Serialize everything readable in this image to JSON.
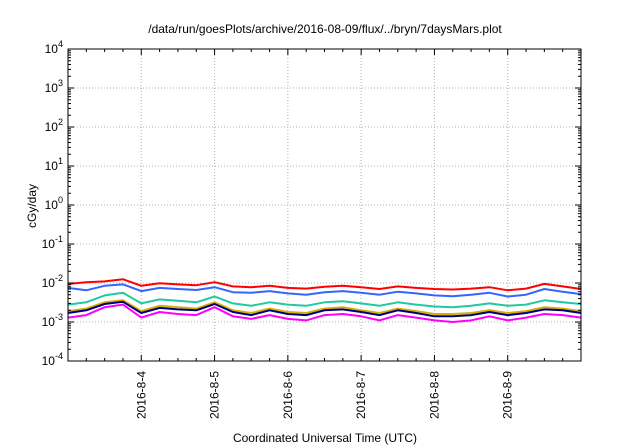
{
  "chart_data": {
    "type": "line",
    "title": "/data/run/goesPlots/archive/2016-08-09/flux/../bryn/7daysMars.plot",
    "xlabel": "Coordinated Universal Time (UTC)",
    "ylabel": "cGy/day",
    "y_scale": "log",
    "ylim": [
      0.0001,
      10000
    ],
    "xlim": [
      "2016-08-03 00:00",
      "2016-08-10 00:00"
    ],
    "grid": true,
    "x_tick_labels": [
      "2016-8-4",
      "2016-8-5",
      "2016-8-6",
      "2016-8-7",
      "2016-8-8",
      "2016-8-9"
    ],
    "y_ticks": [
      {
        "base": "10",
        "exp": "-4",
        "value": 0.0001
      },
      {
        "base": "10",
        "exp": "-3",
        "value": 0.001
      },
      {
        "base": "10",
        "exp": "-2",
        "value": 0.01
      },
      {
        "base": "10",
        "exp": "-1",
        "value": 0.1
      },
      {
        "base": "10",
        "exp": "0",
        "value": 1
      },
      {
        "base": "10",
        "exp": "1",
        "value": 10
      },
      {
        "base": "10",
        "exp": "2",
        "value": 100
      },
      {
        "base": "10",
        "exp": "3",
        "value": 1000
      },
      {
        "base": "10",
        "exp": "4",
        "value": 10000
      }
    ],
    "x": [
      "2016-08-03 00:00",
      "2016-08-03 06:00",
      "2016-08-03 12:00",
      "2016-08-03 18:00",
      "2016-08-04 00:00",
      "2016-08-04 06:00",
      "2016-08-04 12:00",
      "2016-08-04 18:00",
      "2016-08-05 00:00",
      "2016-08-05 06:00",
      "2016-08-05 12:00",
      "2016-08-05 18:00",
      "2016-08-06 00:00",
      "2016-08-06 06:00",
      "2016-08-06 12:00",
      "2016-08-06 18:00",
      "2016-08-07 00:00",
      "2016-08-07 06:00",
      "2016-08-07 12:00",
      "2016-08-07 18:00",
      "2016-08-08 00:00",
      "2016-08-08 06:00",
      "2016-08-08 12:00",
      "2016-08-08 18:00",
      "2016-08-09 00:00",
      "2016-08-09 06:00",
      "2016-08-09 12:00",
      "2016-08-09 18:00",
      "2016-08-10 00:00"
    ],
    "series": [
      {
        "color": "#ff0000",
        "values": [
          0.0095,
          0.0105,
          0.011,
          0.0125,
          0.0085,
          0.0098,
          0.0092,
          0.0088,
          0.0105,
          0.0082,
          0.0078,
          0.0085,
          0.0075,
          0.0072,
          0.008,
          0.0085,
          0.0078,
          0.007,
          0.0082,
          0.0075,
          0.007,
          0.0068,
          0.0072,
          0.0078,
          0.0065,
          0.0072,
          0.0095,
          0.0082,
          0.007
        ]
      },
      {
        "color": "#3366ff",
        "values": [
          0.0075,
          0.0065,
          0.0085,
          0.0092,
          0.0062,
          0.0075,
          0.007,
          0.0066,
          0.0078,
          0.0058,
          0.0056,
          0.0062,
          0.0054,
          0.005,
          0.0058,
          0.0062,
          0.0056,
          0.005,
          0.006,
          0.0054,
          0.0048,
          0.0046,
          0.005,
          0.0056,
          0.0045,
          0.005,
          0.007,
          0.006,
          0.0052
        ]
      },
      {
        "color": "#22c8a0",
        "values": [
          0.0028,
          0.0032,
          0.0048,
          0.0056,
          0.003,
          0.0038,
          0.0035,
          0.0032,
          0.0045,
          0.003,
          0.0026,
          0.0032,
          0.0028,
          0.0026,
          0.0032,
          0.0034,
          0.003,
          0.0026,
          0.0032,
          0.0028,
          0.0025,
          0.0024,
          0.0026,
          0.003,
          0.0026,
          0.0028,
          0.0036,
          0.0032,
          0.0029
        ]
      },
      {
        "color": "#d4b000",
        "values": [
          0.0019,
          0.0022,
          0.0032,
          0.0036,
          0.0019,
          0.0026,
          0.0024,
          0.0022,
          0.0032,
          0.002,
          0.0017,
          0.0022,
          0.0018,
          0.0017,
          0.0022,
          0.0024,
          0.002,
          0.0017,
          0.0022,
          0.0019,
          0.0016,
          0.0016,
          0.0017,
          0.002,
          0.0017,
          0.0019,
          0.0024,
          0.0022,
          0.0019
        ]
      },
      {
        "color": "#000080",
        "values": [
          0.0017,
          0.002,
          0.0029,
          0.0033,
          0.0017,
          0.0023,
          0.0021,
          0.002,
          0.0029,
          0.0018,
          0.0015,
          0.002,
          0.0016,
          0.0015,
          0.002,
          0.0021,
          0.0018,
          0.0015,
          0.002,
          0.0017,
          0.0014,
          0.0014,
          0.0015,
          0.0018,
          0.0015,
          0.0017,
          0.0021,
          0.002,
          0.0017
        ]
      },
      {
        "color": "#ff00ff",
        "values": [
          0.0013,
          0.0015,
          0.0024,
          0.0028,
          0.0013,
          0.0018,
          0.0016,
          0.0015,
          0.0024,
          0.0014,
          0.0012,
          0.0015,
          0.0012,
          0.0011,
          0.0015,
          0.0016,
          0.0014,
          0.0011,
          0.0015,
          0.0013,
          0.0011,
          0.001,
          0.0011,
          0.0014,
          0.0011,
          0.0013,
          0.0016,
          0.0015,
          0.0013
        ]
      }
    ]
  }
}
